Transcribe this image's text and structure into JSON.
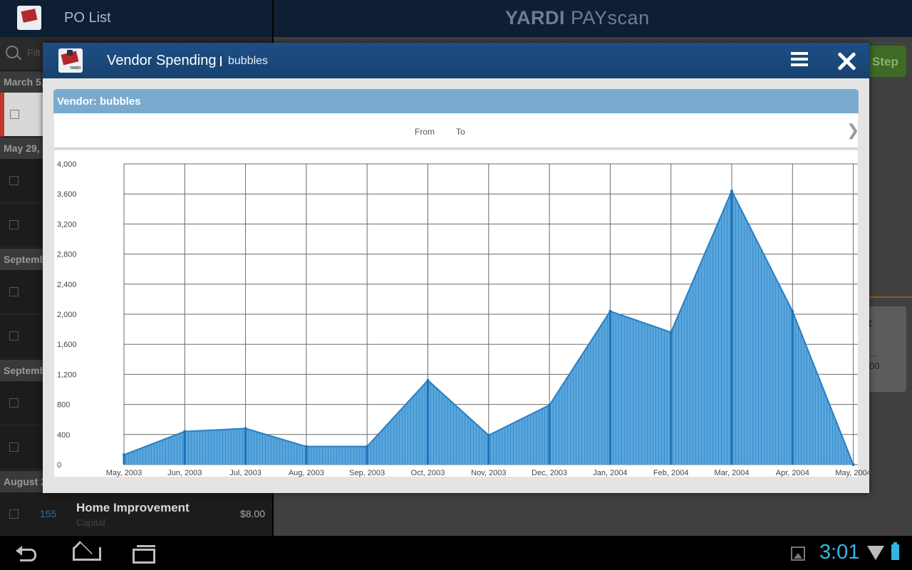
{
  "left_panel": {
    "title": "PO List",
    "search_placeholder": "Filt",
    "date_headers": [
      "March 5, ",
      "May 29, ",
      "Septemb",
      "Septemb",
      "August 2"
    ],
    "rows": [
      {
        "num": "",
        "name": "",
        "sub": "",
        "amount": ""
      },
      {
        "num": "155",
        "name": "Home Improvement",
        "sub": "Capital",
        "amount": "$8.00"
      }
    ]
  },
  "right_panel": {
    "brand_bold": "YARDI",
    "brand_rest": " PAYscan",
    "step_label": "Step",
    "card_t1": "t",
    "card_t2": "...",
    "card_t3": "00"
  },
  "modal": {
    "title": "Vendor Spending",
    "subtitle": "bubbles",
    "logo_tag": "YARDI",
    "vendor_label": "Vendor: bubbles",
    "from_label": "From",
    "to_label": "To",
    "next_glyph": "❯"
  },
  "chart_data": {
    "type": "area",
    "x": [
      "May, 2003",
      "Jun, 2003",
      "Jul, 2003",
      "Aug, 2003",
      "Sep, 2003",
      "Oct, 2003",
      "Nov, 2003",
      "Dec, 2003",
      "Jan, 2004",
      "Feb, 2004",
      "Mar, 2004",
      "Apr, 2004",
      "May, 2004"
    ],
    "values": [
      130,
      440,
      480,
      240,
      240,
      1120,
      390,
      790,
      2040,
      1760,
      3640,
      2040,
      0
    ],
    "ylim": [
      0,
      4000
    ],
    "yticks": [
      0,
      400,
      800,
      1200,
      1600,
      2000,
      2400,
      2800,
      3200,
      3600,
      4000
    ],
    "ytick_labels": [
      "0",
      "400",
      "800",
      "1,200",
      "1,600",
      "2,000",
      "2,400",
      "2,800",
      "3,200",
      "3,600",
      "4,000"
    ],
    "grid": true,
    "fill_color": "#5aa6dc",
    "line_color": "#2a7ec2"
  },
  "navbar": {
    "time": "3:01"
  },
  "colors": {
    "modal_header": "#1d4f86",
    "vendor_bar": "#79aace",
    "clock": "#33b5e5"
  }
}
